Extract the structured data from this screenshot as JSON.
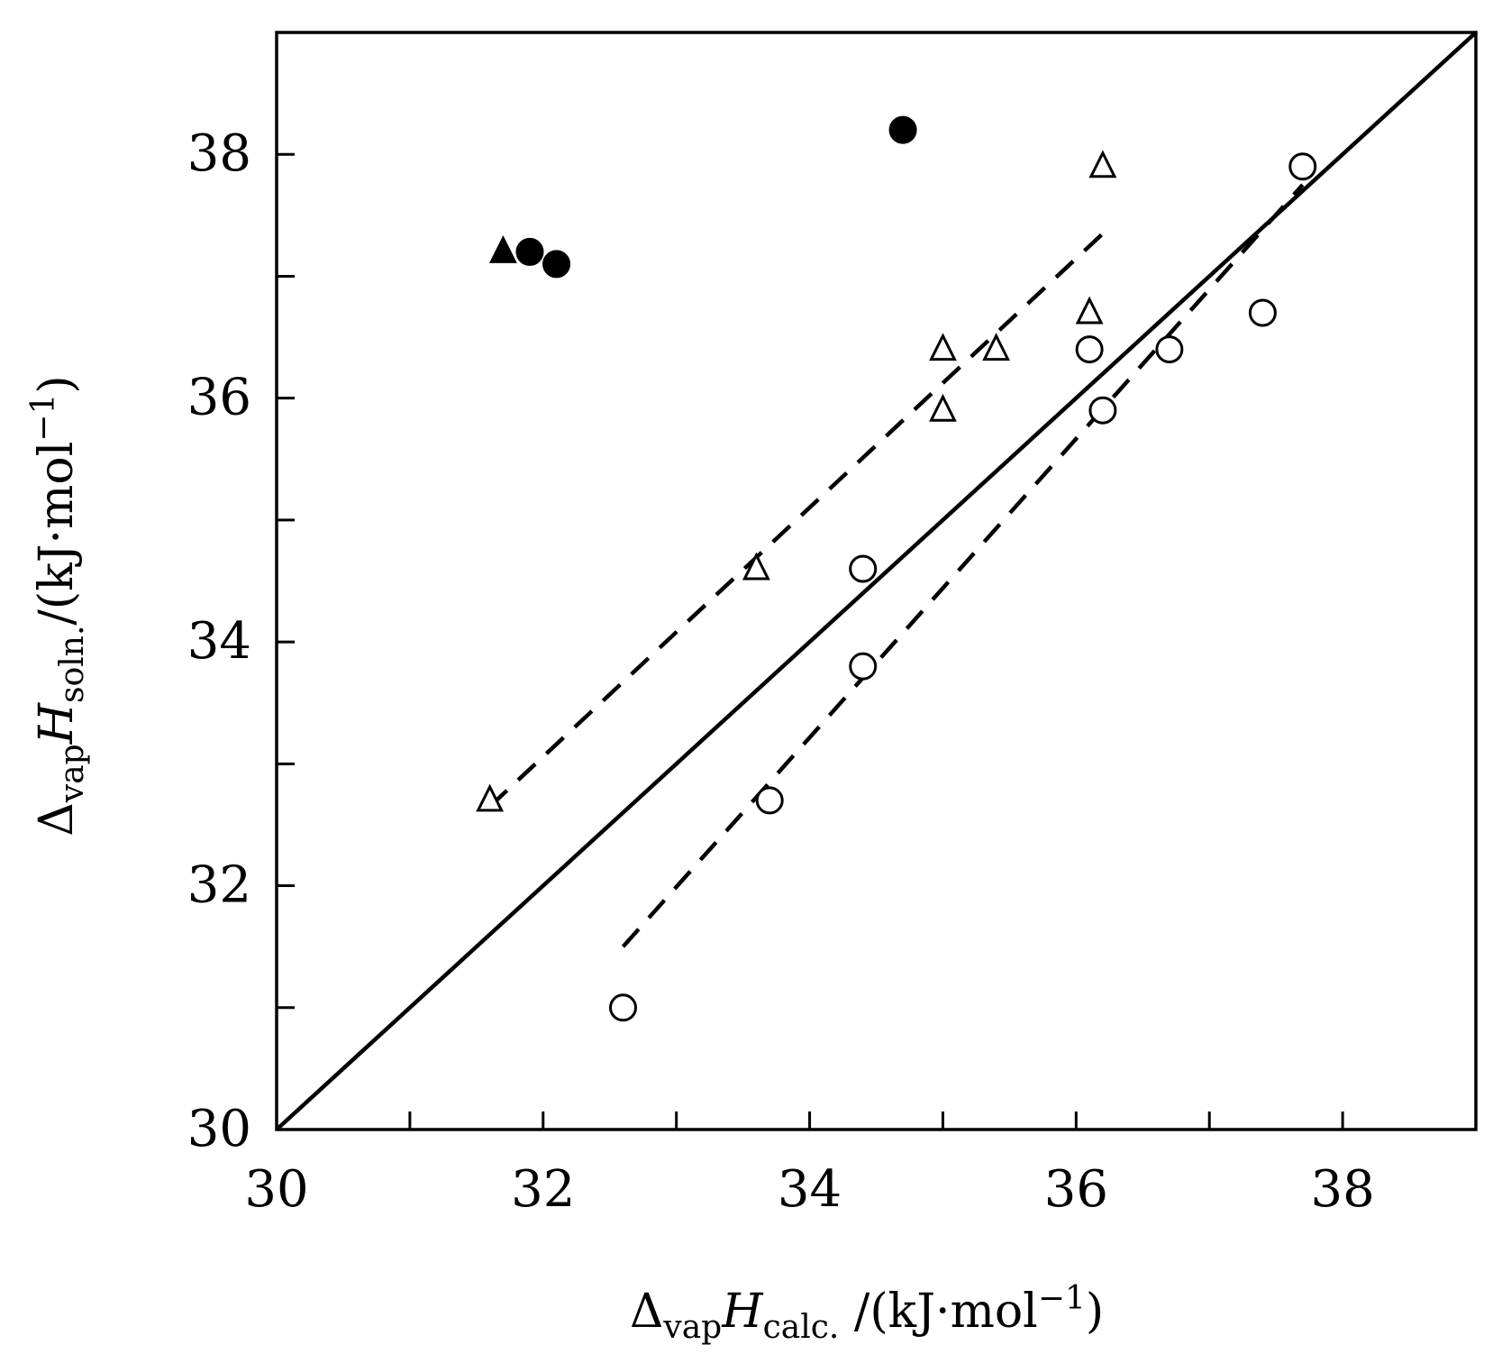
{
  "chart_data": {
    "type": "scatter",
    "xlabel": {
      "delta": "Δ",
      "sub1": "vap",
      "main": "H",
      "sub2": "calc.",
      "unit": " /(kJ·mol",
      "exp": "−1",
      "close": ")"
    },
    "ylabel": {
      "delta": "Δ",
      "sub1": "vap",
      "main": "H",
      "sub2": "soln.",
      "unit": "/(kJ·mol",
      "exp": "−1",
      "close": ")"
    },
    "xlim": [
      30,
      39
    ],
    "ylim": [
      30,
      39
    ],
    "x_ticks": [
      "30",
      "32",
      "34",
      "36",
      "38"
    ],
    "y_ticks": [
      "30",
      "32",
      "34",
      "36",
      "38"
    ],
    "grid": false,
    "series": [
      {
        "marker": "open-circle",
        "points": [
          [
            32.6,
            31.0
          ],
          [
            33.7,
            32.7
          ],
          [
            34.4,
            33.8
          ],
          [
            34.4,
            34.6
          ],
          [
            36.1,
            36.4
          ],
          [
            36.2,
            35.9
          ],
          [
            36.7,
            36.4
          ],
          [
            37.4,
            36.7
          ],
          [
            37.7,
            37.9
          ]
        ]
      },
      {
        "marker": "open-triangle",
        "points": [
          [
            31.6,
            32.7
          ],
          [
            33.6,
            34.6
          ],
          [
            35.0,
            35.9
          ],
          [
            35.0,
            36.4
          ],
          [
            35.4,
            36.4
          ],
          [
            36.1,
            36.7
          ],
          [
            36.2,
            37.9
          ]
        ]
      },
      {
        "marker": "filled-circle",
        "points": [
          [
            31.9,
            37.2
          ],
          [
            32.1,
            37.1
          ],
          [
            34.7,
            38.2
          ]
        ]
      },
      {
        "marker": "filled-triangle",
        "points": [
          [
            31.7,
            37.2
          ]
        ]
      }
    ],
    "lines": [
      {
        "style": "solid",
        "from": [
          30.0,
          30.0
        ],
        "to": [
          39.0,
          39.0
        ]
      },
      {
        "style": "dashed",
        "from": [
          31.6,
          32.65
        ],
        "to": [
          36.2,
          37.35
        ]
      },
      {
        "style": "dashed",
        "from": [
          32.6,
          31.5
        ],
        "to": [
          37.7,
          37.75
        ]
      }
    ]
  }
}
